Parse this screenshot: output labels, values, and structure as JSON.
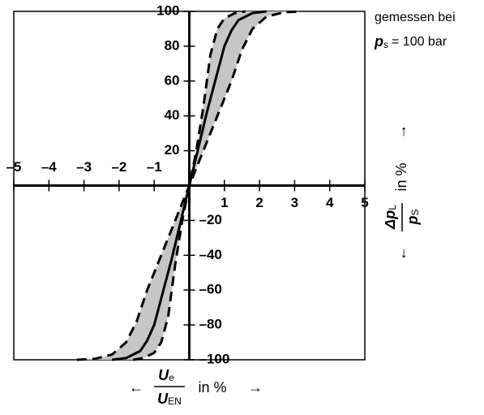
{
  "chart_data": {
    "type": "line",
    "xlim": [
      -5,
      5
    ],
    "ylim": [
      -100,
      100
    ],
    "xticks": [
      {
        "value": -5,
        "label": "–5"
      },
      {
        "value": -4,
        "label": "–4"
      },
      {
        "value": -3,
        "label": "–3"
      },
      {
        "value": -2,
        "label": "–2"
      },
      {
        "value": -1,
        "label": "–1"
      },
      1,
      2,
      3,
      4,
      5
    ],
    "yticks": [
      {
        "value": -100,
        "label": "–100"
      },
      {
        "value": -80,
        "label": "–80"
      },
      {
        "value": -60,
        "label": "–60"
      },
      {
        "value": -40,
        "label": "–40"
      },
      {
        "value": -20,
        "label": "–20"
      },
      20,
      40,
      60,
      80,
      100
    ],
    "band_color": "#c6c6c6",
    "series": [
      {
        "color": "#000000",
        "dashed": true,
        "x": [
          -1.6,
          -1.3,
          -1,
          -0.8,
          -0.6,
          -0.4,
          -0.2,
          0,
          0.2,
          0.4,
          0.6,
          0.8,
          1,
          1.3,
          1.6
        ],
        "values": [
          -100,
          -99,
          -96,
          -90,
          -75,
          -45,
          -20,
          0,
          20,
          45,
          75,
          90,
          96,
          99,
          100
        ]
      },
      {
        "color": "#000000",
        "dashed": true,
        "x": [
          -3.2,
          -2.7,
          -2.2,
          -1.8,
          -1.5,
          -1.2,
          -0.8,
          -0.4,
          0,
          0.4,
          0.8,
          1.2,
          1.5,
          1.8,
          2.2,
          2.7,
          3.2
        ],
        "values": [
          -100,
          -99.5,
          -97,
          -90,
          -78,
          -60,
          -40,
          -20,
          0,
          20,
          40,
          60,
          78,
          90,
          97,
          99.5,
          100
        ]
      },
      {
        "color": "#000000",
        "dashed": false,
        "x": [
          -2.2,
          -1.8,
          -1.4,
          -1.2,
          -1,
          -0.5,
          0,
          0.5,
          1,
          1.2,
          1.4,
          1.8,
          2.2
        ],
        "values": [
          -100,
          -99,
          -95,
          -89,
          -80,
          -42,
          0,
          42,
          80,
          89,
          95,
          99,
          100
        ]
      }
    ],
    "xlabel": {
      "arrow_left": "←",
      "numerator": "U",
      "numerator_sub": "e",
      "denominator": "U",
      "denominator_sub": "EN",
      "suffix": "in %",
      "arrow_right": "→"
    },
    "ylabel": {
      "arrow_left": "←",
      "numerator": "Δp",
      "numerator_sub": "L",
      "denominator": "p",
      "denominator_sub": "S",
      "suffix": "in %",
      "arrow_right": "→"
    },
    "annotation": {
      "line1": "gemessen bei",
      "symbol": "p",
      "symbol_sub": "s",
      "text": "= 100 bar"
    }
  }
}
